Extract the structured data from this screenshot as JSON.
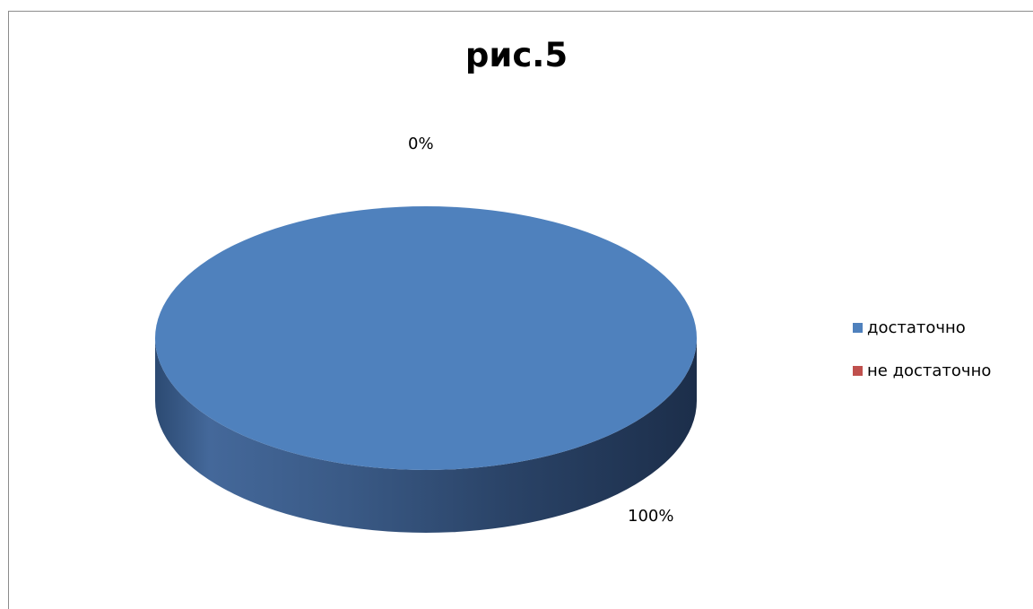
{
  "chart_data": {
    "type": "pie",
    "title": "рис.5",
    "categories": [
      "достаточно",
      "не достаточно"
    ],
    "values": [
      100,
      0
    ],
    "data_labels": [
      "100%",
      "0%"
    ],
    "colors": [
      "#4F81BD",
      "#C0504D"
    ],
    "style": "3d",
    "legend_position": "right"
  }
}
